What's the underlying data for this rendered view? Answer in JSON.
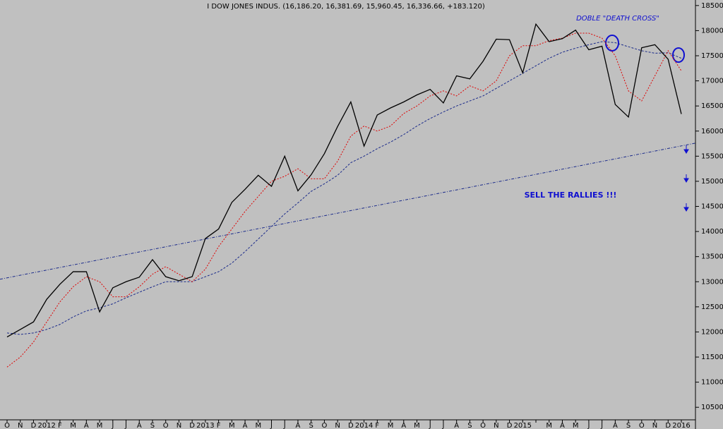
{
  "chart_data": {
    "type": "line",
    "title": "I DOW JONES INDUS. (16,186.20, 16,381.69, 15,960.45, 16,336.66, +183.120)",
    "annotations": [
      "DOBLE \"DEATH CROSS\"",
      "SELL THE RALLIES !!!"
    ],
    "categories": [
      "O",
      "N",
      "D",
      "2012",
      "F",
      "M",
      "A",
      "M",
      "J",
      "J",
      "A",
      "S",
      "O",
      "N",
      "D",
      "2013",
      "F",
      "M",
      "A",
      "M",
      "J",
      "J",
      "A",
      "S",
      "O",
      "N",
      "D",
      "2014",
      "F",
      "M",
      "A",
      "M",
      "J",
      "J",
      "A",
      "S",
      "O",
      "N",
      "D",
      "2015",
      null,
      "M",
      "A",
      "M",
      "J",
      "J",
      "A",
      "S",
      "O",
      "N",
      "D",
      "2016"
    ],
    "series": [
      {
        "color": "#000000",
        "values": [
          11900,
          12050,
          12200,
          12650,
          12950,
          13200,
          13200,
          12400,
          12880,
          13000,
          13090,
          13440,
          13100,
          13020,
          13100,
          13860,
          14050,
          14580,
          14840,
          15120,
          14900,
          15500,
          14810,
          15130,
          15550,
          16090,
          16580,
          15700,
          16320,
          16460,
          16580,
          16720,
          16830,
          16560,
          17100,
          17040,
          17390,
          17830,
          17820,
          17160,
          18130,
          17780,
          17840,
          18010,
          17620,
          17690,
          16530,
          16280,
          17660,
          17720,
          17430,
          16340
        ]
      },
      {
        "color": "#e00000",
        "values": [
          11300,
          11500,
          11800,
          12200,
          12600,
          12900,
          13100,
          13000,
          12700,
          12700,
          12900,
          13150,
          13300,
          13150,
          13000,
          13250,
          13700,
          14050,
          14400,
          14700,
          15000,
          15100,
          15250,
          15050,
          15050,
          15400,
          15900,
          16100,
          16000,
          16100,
          16350,
          16500,
          16700,
          16800,
          16700,
          16900,
          16800,
          17000,
          17500,
          17700,
          17700,
          17800,
          17850,
          17950,
          17950,
          17850,
          17500,
          16800,
          16600,
          17100,
          17600,
          17200
        ]
      },
      {
        "color": "#1a2a8a",
        "values": [
          11980,
          11950,
          11980,
          12050,
          12150,
          12300,
          12420,
          12480,
          12560,
          12680,
          12790,
          12900,
          13000,
          13000,
          13000,
          13100,
          13200,
          13370,
          13600,
          13850,
          14100,
          14350,
          14570,
          14800,
          14950,
          15120,
          15370,
          15500,
          15650,
          15780,
          15930,
          16100,
          16250,
          16380,
          16500,
          16600,
          16700,
          16850,
          17000,
          17150,
          17300,
          17450,
          17570,
          17650,
          17720,
          17780,
          17760,
          17680,
          17600,
          17550,
          17560,
          17450
        ]
      }
    ],
    "trend": [
      13050,
      15760
    ],
    "ylim": [
      10250,
      18610
    ],
    "yticks": [
      10500,
      11000,
      11500,
      12000,
      12500,
      13000,
      13500,
      14000,
      14500,
      15000,
      15500,
      16000,
      16500,
      17000,
      17500,
      18000,
      18500
    ]
  }
}
